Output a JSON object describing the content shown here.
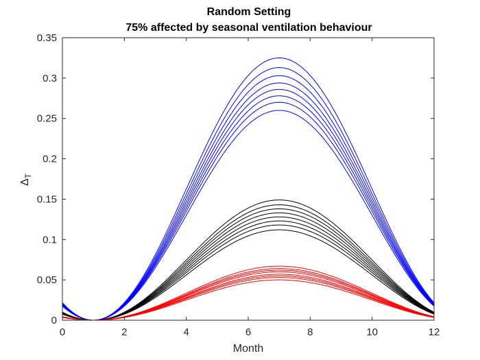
{
  "chart_data": {
    "type": "line",
    "title": "Random Setting",
    "subtitle": "75% affected by seasonal ventilation behaviour",
    "xlabel": "Month",
    "ylabel": "Δ",
    "ylabel_sub": "T",
    "xlim": [
      0,
      12
    ],
    "ylim": [
      0,
      0.35
    ],
    "xticks": [
      "0",
      "2",
      "4",
      "6",
      "8",
      "10",
      "12"
    ],
    "yticks": [
      "0",
      "0.05",
      "0.1",
      "0.15",
      "0.2",
      "0.25",
      "0.3",
      "0.35"
    ],
    "grid": false,
    "legend": "none",
    "curve_shape": "sin^2(pi*(x-1)/12), minimum at month 1, peak at month 7",
    "groups": [
      {
        "color": "#0000ff",
        "peaks": [
          0.26,
          0.27,
          0.278,
          0.286,
          0.294,
          0.303,
          0.313,
          0.325
        ]
      },
      {
        "color": "#000000",
        "peaks": [
          0.112,
          0.118,
          0.123,
          0.128,
          0.133,
          0.138,
          0.143,
          0.149
        ]
      },
      {
        "color": "#ff0000",
        "peaks": [
          0.05,
          0.053,
          0.055,
          0.057,
          0.06,
          0.062,
          0.064,
          0.067
        ]
      }
    ]
  }
}
